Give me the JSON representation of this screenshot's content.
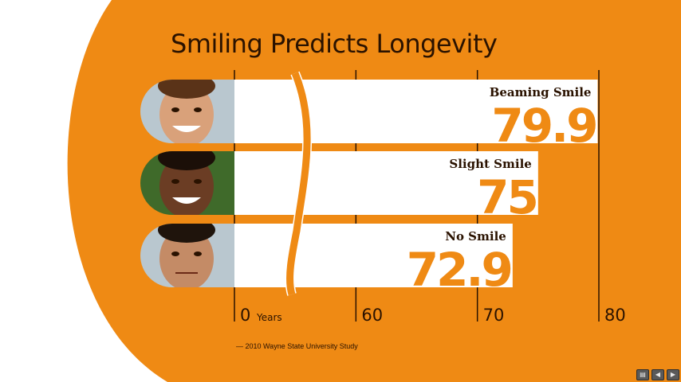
{
  "slide": {
    "title": "Smiling Predicts Longevity",
    "source": "— 2010 Wayne State University Study",
    "colors": {
      "orange": "#ef8a14",
      "dark_brown": "#2a1200",
      "bar_fill": "#ffffff",
      "value_text": "#ef8a14"
    }
  },
  "chart_data": {
    "type": "bar",
    "orientation": "horizontal",
    "title": "Smiling Predicts Longevity",
    "categories": [
      "Beaming Smile",
      "Slight Smile",
      "No Smile"
    ],
    "values": [
      79.9,
      75,
      72.9
    ],
    "value_labels": [
      "79.9",
      "75",
      "72.9"
    ],
    "xlabel": "Years",
    "x_ticks": [
      "0",
      "60",
      "70",
      "80"
    ],
    "axis_break": true,
    "xlim": [
      50,
      80
    ],
    "grid": true,
    "category_images": [
      "face-photo",
      "face-photo",
      "face-photo"
    ]
  },
  "player_controls": [
    {
      "icon": "slides-icon",
      "glyph": "▤"
    },
    {
      "icon": "previous-icon",
      "glyph": "◀"
    },
    {
      "icon": "next-icon",
      "glyph": "▶"
    }
  ]
}
